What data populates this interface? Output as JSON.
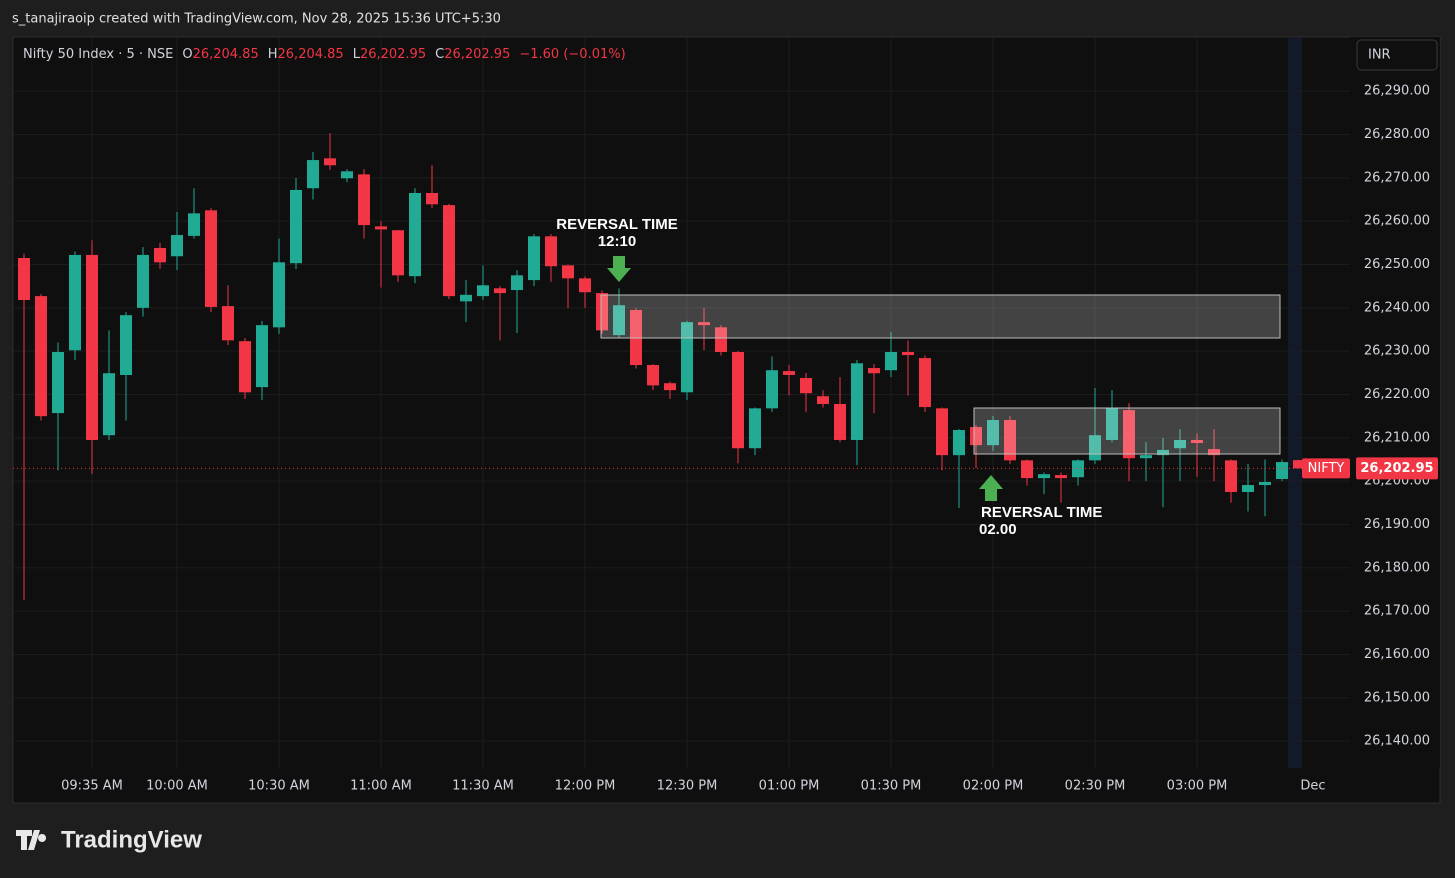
{
  "caption": "s_tanajiraoip created with TradingView.com, Nov 28, 2025 15:36 UTC+5:30",
  "brand": "TradingView",
  "currency_button": "INR",
  "header": {
    "symbol": "Nifty 50 Index · 5 · NSE",
    "fields": [
      {
        "key": "O",
        "value": "26,204.85"
      },
      {
        "key": "H",
        "value": "26,204.85"
      },
      {
        "key": "L",
        "value": "26,202.95"
      },
      {
        "key": "C",
        "value": "26,202.95"
      }
    ],
    "change": "−1.60 (−0.01%)"
  },
  "chart_data": {
    "type": "candlestick",
    "up_color": "#22ab94",
    "down_color": "#f23645",
    "grid": true,
    "categories": [
      null,
      null,
      null,
      null,
      "09:35 AM",
      null,
      null,
      null,
      null,
      "10:00 AM",
      null,
      null,
      null,
      null,
      null,
      "10:30 AM",
      null,
      null,
      null,
      null,
      null,
      "11:00 AM",
      null,
      null,
      null,
      null,
      null,
      "11:30 AM",
      null,
      null,
      null,
      null,
      null,
      "12:00 PM",
      null,
      null,
      null,
      null,
      null,
      "12:30 PM",
      null,
      null,
      null,
      null,
      null,
      "01:00 PM",
      null,
      null,
      null,
      null,
      null,
      "01:30 PM",
      null,
      null,
      null,
      null,
      null,
      "02:00 PM",
      null,
      null,
      null,
      null,
      null,
      "02:30 PM",
      null,
      null,
      null,
      null,
      null,
      "03:00 PM",
      null,
      null,
      null,
      null,
      null,
      null
    ],
    "period_label": "Dec",
    "open": [
      26251.5,
      26242.7,
      26215.7,
      26230.2,
      26252.2,
      26210.6,
      26224.5,
      26240.0,
      26253.8,
      26251.9,
      26256.6,
      26262.5,
      26240.4,
      26232.3,
      26221.7,
      26235.5,
      26250.3,
      26267.6,
      26274.5,
      26269.9,
      26270.8,
      26258.8,
      26257.9,
      26247.3,
      26266.5,
      26263.7,
      26241.5,
      26242.7,
      26244.5,
      26244.1,
      26246.4,
      26256.5,
      26249.8,
      26246.8,
      26243.4,
      26233.7,
      26239.5,
      26226.8,
      26222.6,
      26220.5,
      26236.7,
      26235.5,
      26229.8,
      26207.6,
      26216.8,
      26225.4,
      26223.8,
      26219.6,
      26217.8,
      26209.5,
      26226.1,
      26225.6,
      26229.8,
      26228.4,
      26216.8,
      26206.0,
      26212.5,
      26208.3,
      26214.1,
      26204.8,
      26200.7,
      26201.4,
      26200.9,
      26204.8,
      26209.5,
      26216.4,
      26205.3,
      26206.0,
      26207.6,
      26209.5,
      26207.4,
      26204.8,
      26197.5,
      26199.1,
      26200.5,
      26204.85
    ],
    "high": [
      26252.5,
      26243.2,
      26232.0,
      26253.0,
      26255.6,
      26234.8,
      26239.0,
      26254.0,
      26255.0,
      26262.1,
      26267.6,
      26263.0,
      26245.2,
      26233.0,
      26237.0,
      26256.0,
      26270.0,
      26276.0,
      26280.3,
      26272.0,
      26272.0,
      26260.0,
      26258.0,
      26267.6,
      26272.9,
      26264.0,
      26246.4,
      26249.8,
      26245.0,
      26248.7,
      26257.0,
      26257.0,
      26250.0,
      26247.3,
      26244.0,
      26244.5,
      26240.0,
      26227.0,
      26223.0,
      26237.0,
      26240.0,
      26236.0,
      26230.0,
      26217.0,
      26228.8,
      26226.8,
      26225.0,
      26221.0,
      26224.0,
      26228.0,
      26227.0,
      26234.4,
      26232.5,
      26229.0,
      26217.0,
      26212.0,
      26213.0,
      26215.0,
      26215.0,
      26205.0,
      26202.0,
      26202.0,
      26205.0,
      26221.5,
      26221.0,
      26218.0,
      26209.0,
      26210.0,
      26212.0,
      26211.0,
      26212.0,
      26205.0,
      26204.0,
      26205.0,
      26205.0,
      26204.85
    ],
    "low": [
      26172.5,
      26214.0,
      26202.5,
      26228.0,
      26201.6,
      26209.5,
      26214.0,
      26238.0,
      26249.0,
      26248.7,
      26256.0,
      26239.0,
      26231.4,
      26219.0,
      26218.7,
      26234.0,
      26249.0,
      26265.0,
      26271.8,
      26269.0,
      26256.0,
      26244.7,
      26246.0,
      26245.7,
      26263.0,
      26242.0,
      26236.7,
      26241.8,
      26232.5,
      26234.2,
      26245.0,
      26246.0,
      26240.0,
      26240.0,
      26234.0,
      26233.0,
      26226.0,
      26221.0,
      26219.0,
      26218.7,
      26230.2,
      26229.0,
      26204.1,
      26206.0,
      26216.0,
      26219.8,
      26215.9,
      26217.0,
      26209.0,
      26203.7,
      26215.7,
      26224.0,
      26219.8,
      26216.0,
      26202.5,
      26193.8,
      26203.0,
      26207.0,
      26204.0,
      26199.0,
      26197.0,
      26195.0,
      26199.0,
      26204.0,
      26209.0,
      26200.0,
      26200.0,
      26194.0,
      26200.0,
      26201.0,
      26200.0,
      26195.0,
      26193.0,
      26191.9,
      26200.0,
      26202.95
    ],
    "close": [
      26241.8,
      26215.0,
      26229.8,
      26252.2,
      26209.5,
      26224.9,
      26238.3,
      26252.2,
      26250.5,
      26256.8,
      26261.8,
      26240.2,
      26232.5,
      26220.5,
      26236.0,
      26250.5,
      26267.2,
      26274.1,
      26272.9,
      26271.5,
      26259.1,
      26258.1,
      26247.5,
      26266.5,
      26263.9,
      26242.7,
      26243.0,
      26245.2,
      26243.4,
      26247.5,
      26256.5,
      26249.6,
      26246.8,
      26243.6,
      26234.8,
      26240.6,
      26226.8,
      26222.1,
      26221.0,
      26236.7,
      26236.0,
      26229.8,
      26207.6,
      26216.8,
      26225.6,
      26224.5,
      26220.3,
      26217.8,
      26209.5,
      26227.2,
      26224.9,
      26229.8,
      26229.1,
      26217.1,
      26206.0,
      26211.8,
      26208.3,
      26214.1,
      26204.8,
      26200.7,
      26201.6,
      26200.7,
      26204.8,
      26210.6,
      26216.8,
      26205.3,
      26206.0,
      26207.2,
      26209.5,
      26208.8,
      26206.0,
      26197.5,
      26199.1,
      26199.8,
      26204.4,
      26202.95
    ],
    "ylim": [
      26133.8,
      26302.5
    ],
    "yticks": [
      {
        "value": 26140,
        "label": "26,140.00"
      },
      {
        "value": 26150,
        "label": "26,150.00"
      },
      {
        "value": 26160,
        "label": "26,160.00"
      },
      {
        "value": 26170,
        "label": "26,170.00"
      },
      {
        "value": 26180,
        "label": "26,180.00"
      },
      {
        "value": 26190,
        "label": "26,190.00"
      },
      {
        "value": 26200,
        "label": "26,200.00"
      },
      {
        "value": 26210,
        "label": "26,210.00"
      },
      {
        "value": 26220,
        "label": "26,220.00"
      },
      {
        "value": 26230,
        "label": "26,230.00"
      },
      {
        "value": 26240,
        "label": "26,240.00"
      },
      {
        "value": 26250,
        "label": "26,250.00"
      },
      {
        "value": 26260,
        "label": "26,260.00"
      },
      {
        "value": 26270,
        "label": "26,270.00"
      },
      {
        "value": 26280,
        "label": "26,280.00"
      },
      {
        "value": 26290,
        "label": "26,290.00"
      }
    ],
    "price_line": {
      "name": "NIFTY",
      "value": 26202.95,
      "label": "26,202.95",
      "color": "#f23645"
    },
    "annotations": [
      {
        "line1": "REVERSAL TIME",
        "line2": "12:10"
      },
      {
        "line1": "REVERSAL TIME",
        "line2": "02.00"
      }
    ]
  }
}
